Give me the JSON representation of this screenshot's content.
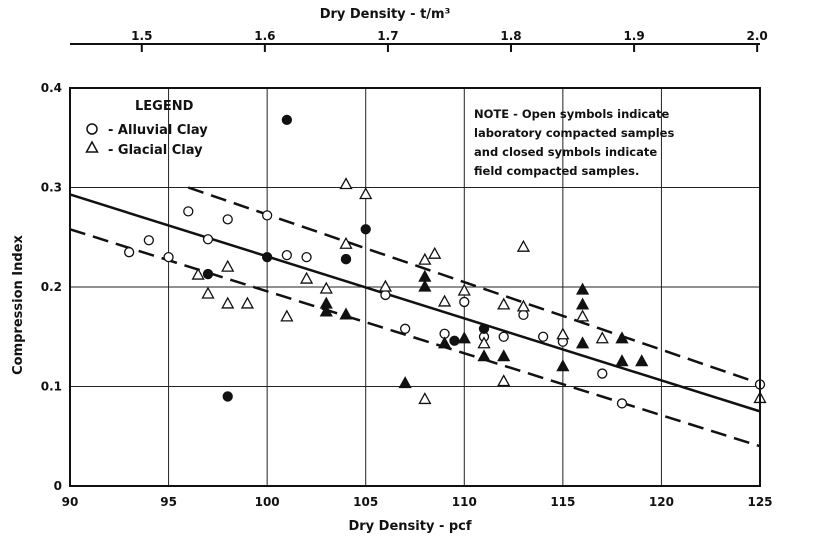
{
  "chart_data": {
    "type": "scatter",
    "title": "",
    "xlabel": "Dry Density - pcf",
    "x2label": "Dry Density - t/m³",
    "ylabel": "Compression Index",
    "xlim": [
      90,
      125
    ],
    "ylim": [
      0,
      0.4
    ],
    "x_ticks": [
      90,
      95,
      100,
      105,
      110,
      115,
      120,
      125
    ],
    "x_tick_labels": [
      "90",
      "95",
      "100",
      "105",
      "110",
      "115",
      "120",
      "125"
    ],
    "x2_ticks": [
      1.5,
      1.6,
      1.7,
      1.8,
      1.9,
      2.0
    ],
    "x2_tick_labels": [
      "1.5",
      "1.6",
      "1.7",
      "1.8",
      "1.9",
      "2.0"
    ],
    "y_ticks": [
      0,
      0.1,
      0.2,
      0.3,
      0.4
    ],
    "y_tick_labels": [
      "0",
      "0.1",
      "0.2",
      "0.3",
      "0.4"
    ],
    "grid": true,
    "legend": {
      "title": "LEGEND",
      "position": "top-left",
      "entries": [
        {
          "symbol": "circle",
          "label": "- Alluvial Clay"
        },
        {
          "symbol": "triangle",
          "label": "- Glacial Clay"
        }
      ]
    },
    "note": [
      "NOTE - Open symbols indicate",
      "laboratory compacted samples",
      "and closed symbols indicate",
      "field compacted samples."
    ],
    "lines": [
      {
        "style": "solid",
        "x": [
          90,
          125
        ],
        "y": [
          0.293,
          0.075
        ]
      },
      {
        "style": "dashed",
        "x": [
          96,
          125
        ],
        "y": [
          0.3,
          0.103
        ]
      },
      {
        "style": "dashed",
        "x": [
          90,
          125
        ],
        "y": [
          0.258,
          0.04
        ]
      }
    ],
    "series": [
      {
        "symbol": "circle",
        "filled": false,
        "x": [
          93,
          94,
          95,
          96,
          97,
          98,
          100,
          101,
          102,
          104,
          106,
          107,
          109,
          110,
          111,
          112,
          113,
          114,
          115,
          117,
          118,
          125
        ],
        "y": [
          0.235,
          0.247,
          0.23,
          0.276,
          0.248,
          0.268,
          0.272,
          0.232,
          0.23,
          0.228,
          0.192,
          0.158,
          0.153,
          0.185,
          0.15,
          0.15,
          0.172,
          0.15,
          0.145,
          0.113,
          0.083,
          0.102
        ]
      },
      {
        "symbol": "circle",
        "filled": true,
        "x": [
          97,
          98,
          100,
          101,
          104,
          105,
          109.5,
          111
        ],
        "y": [
          0.213,
          0.09,
          0.23,
          0.368,
          0.228,
          0.258,
          0.146,
          0.158
        ]
      },
      {
        "symbol": "triangle",
        "filled": false,
        "x": [
          96.5,
          97,
          98,
          98,
          99,
          101,
          102,
          103,
          104,
          104,
          105,
          106,
          108,
          108,
          108.5,
          109,
          110,
          111,
          112,
          112,
          113,
          113,
          115,
          116,
          117,
          125
        ],
        "y": [
          0.212,
          0.193,
          0.22,
          0.183,
          0.183,
          0.17,
          0.208,
          0.198,
          0.303,
          0.243,
          0.293,
          0.2,
          0.227,
          0.087,
          0.233,
          0.185,
          0.196,
          0.143,
          0.182,
          0.105,
          0.24,
          0.18,
          0.152,
          0.17,
          0.148,
          0.088
        ]
      },
      {
        "symbol": "triangle",
        "filled": true,
        "x": [
          103,
          103,
          104,
          107,
          108,
          108,
          109,
          110,
          111,
          112,
          115,
          116,
          116,
          116,
          118,
          118,
          119
        ],
        "y": [
          0.183,
          0.175,
          0.172,
          0.103,
          0.21,
          0.2,
          0.143,
          0.148,
          0.13,
          0.13,
          0.12,
          0.197,
          0.182,
          0.143,
          0.148,
          0.125,
          0.125
        ]
      }
    ]
  }
}
